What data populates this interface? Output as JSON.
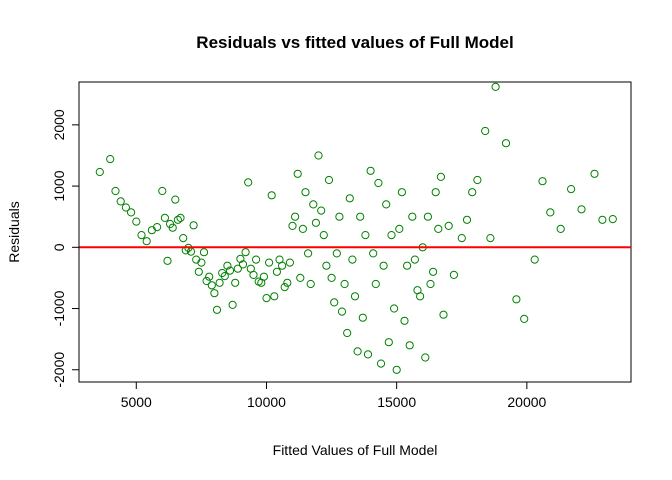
{
  "chart_data": {
    "type": "scatter",
    "title": "Residuals vs fitted values of Full Model",
    "xlabel": "Fitted Values of Full Model",
    "ylabel": "Residuals",
    "xlim": [
      2800,
      24000
    ],
    "ylim": [
      -2200,
      2700
    ],
    "xticks": [
      5000,
      10000,
      15000,
      20000
    ],
    "yticks": [
      -2000,
      -1000,
      0,
      1000,
      2000
    ],
    "xtick_labels": [
      "5000",
      "10000",
      "15000",
      "20000"
    ],
    "ytick_labels": [
      "-2000",
      "-1000",
      "0",
      "1000",
      "2000"
    ],
    "grid": false,
    "point_color": "#008000",
    "reference_line": {
      "y": 0,
      "color": "#ff0000"
    },
    "points": [
      [
        3600,
        1230
      ],
      [
        4000,
        1440
      ],
      [
        4200,
        920
      ],
      [
        4400,
        750
      ],
      [
        4600,
        650
      ],
      [
        4800,
        570
      ],
      [
        5000,
        420
      ],
      [
        5200,
        200
      ],
      [
        5400,
        100
      ],
      [
        5600,
        280
      ],
      [
        5800,
        330
      ],
      [
        6000,
        920
      ],
      [
        6100,
        480
      ],
      [
        6200,
        -220
      ],
      [
        6300,
        380
      ],
      [
        6400,
        320
      ],
      [
        6500,
        780
      ],
      [
        6600,
        450
      ],
      [
        6700,
        480
      ],
      [
        6800,
        150
      ],
      [
        6900,
        -50
      ],
      [
        7000,
        -10
      ],
      [
        7100,
        -70
      ],
      [
        7200,
        360
      ],
      [
        7300,
        -200
      ],
      [
        7400,
        -400
      ],
      [
        7500,
        -250
      ],
      [
        7600,
        -80
      ],
      [
        7700,
        -550
      ],
      [
        7800,
        -480
      ],
      [
        7900,
        -620
      ],
      [
        8000,
        -750
      ],
      [
        8100,
        -1020
      ],
      [
        8200,
        -580
      ],
      [
        8300,
        -420
      ],
      [
        8400,
        -470
      ],
      [
        8500,
        -300
      ],
      [
        8600,
        -380
      ],
      [
        8700,
        -940
      ],
      [
        8800,
        -580
      ],
      [
        8900,
        -350
      ],
      [
        9000,
        -190
      ],
      [
        9100,
        -280
      ],
      [
        9200,
        -80
      ],
      [
        9300,
        1060
      ],
      [
        9400,
        -350
      ],
      [
        9500,
        -450
      ],
      [
        9600,
        -200
      ],
      [
        9700,
        -560
      ],
      [
        9800,
        -580
      ],
      [
        9900,
        -480
      ],
      [
        10000,
        -830
      ],
      [
        10100,
        -250
      ],
      [
        10200,
        850
      ],
      [
        10300,
        -800
      ],
      [
        10400,
        -400
      ],
      [
        10500,
        -200
      ],
      [
        10600,
        -300
      ],
      [
        10700,
        -650
      ],
      [
        10800,
        -580
      ],
      [
        10900,
        -250
      ],
      [
        11000,
        350
      ],
      [
        11100,
        500
      ],
      [
        11200,
        1200
      ],
      [
        11300,
        -500
      ],
      [
        11400,
        300
      ],
      [
        11500,
        900
      ],
      [
        11600,
        -100
      ],
      [
        11700,
        -600
      ],
      [
        11800,
        700
      ],
      [
        11900,
        400
      ],
      [
        12000,
        1500
      ],
      [
        12100,
        600
      ],
      [
        12200,
        200
      ],
      [
        12300,
        -300
      ],
      [
        12400,
        1100
      ],
      [
        12500,
        -500
      ],
      [
        12600,
        -900
      ],
      [
        12700,
        -100
      ],
      [
        12800,
        500
      ],
      [
        12900,
        -1050
      ],
      [
        13000,
        -600
      ],
      [
        13100,
        -1400
      ],
      [
        13200,
        800
      ],
      [
        13300,
        -200
      ],
      [
        13400,
        -800
      ],
      [
        13500,
        -1700
      ],
      [
        13600,
        500
      ],
      [
        13700,
        -1150
      ],
      [
        13800,
        200
      ],
      [
        13900,
        -1750
      ],
      [
        14000,
        1250
      ],
      [
        14100,
        -100
      ],
      [
        14200,
        -600
      ],
      [
        14300,
        1050
      ],
      [
        14400,
        -1900
      ],
      [
        14500,
        -300
      ],
      [
        14600,
        700
      ],
      [
        14700,
        -1550
      ],
      [
        14800,
        200
      ],
      [
        14900,
        -1000
      ],
      [
        15000,
        -2000
      ],
      [
        15100,
        300
      ],
      [
        15200,
        900
      ],
      [
        15300,
        -1200
      ],
      [
        15400,
        -300
      ],
      [
        15500,
        -1600
      ],
      [
        15600,
        500
      ],
      [
        15700,
        -200
      ],
      [
        15800,
        -700
      ],
      [
        15900,
        -800
      ],
      [
        16000,
        0
      ],
      [
        16100,
        -1800
      ],
      [
        16200,
        500
      ],
      [
        16300,
        -600
      ],
      [
        16400,
        -400
      ],
      [
        16500,
        900
      ],
      [
        16600,
        300
      ],
      [
        16700,
        1150
      ],
      [
        16800,
        -1100
      ],
      [
        17000,
        350
      ],
      [
        17200,
        -450
      ],
      [
        17500,
        150
      ],
      [
        17700,
        450
      ],
      [
        17900,
        900
      ],
      [
        18100,
        1100
      ],
      [
        18400,
        1900
      ],
      [
        18600,
        150
      ],
      [
        18800,
        2620
      ],
      [
        19200,
        1700
      ],
      [
        19600,
        -850
      ],
      [
        19900,
        -1170
      ],
      [
        20300,
        -200
      ],
      [
        20600,
        1080
      ],
      [
        20900,
        570
      ],
      [
        21300,
        300
      ],
      [
        21700,
        950
      ],
      [
        22100,
        620
      ],
      [
        22600,
        1200
      ],
      [
        22900,
        450
      ],
      [
        23300,
        460
      ]
    ]
  }
}
